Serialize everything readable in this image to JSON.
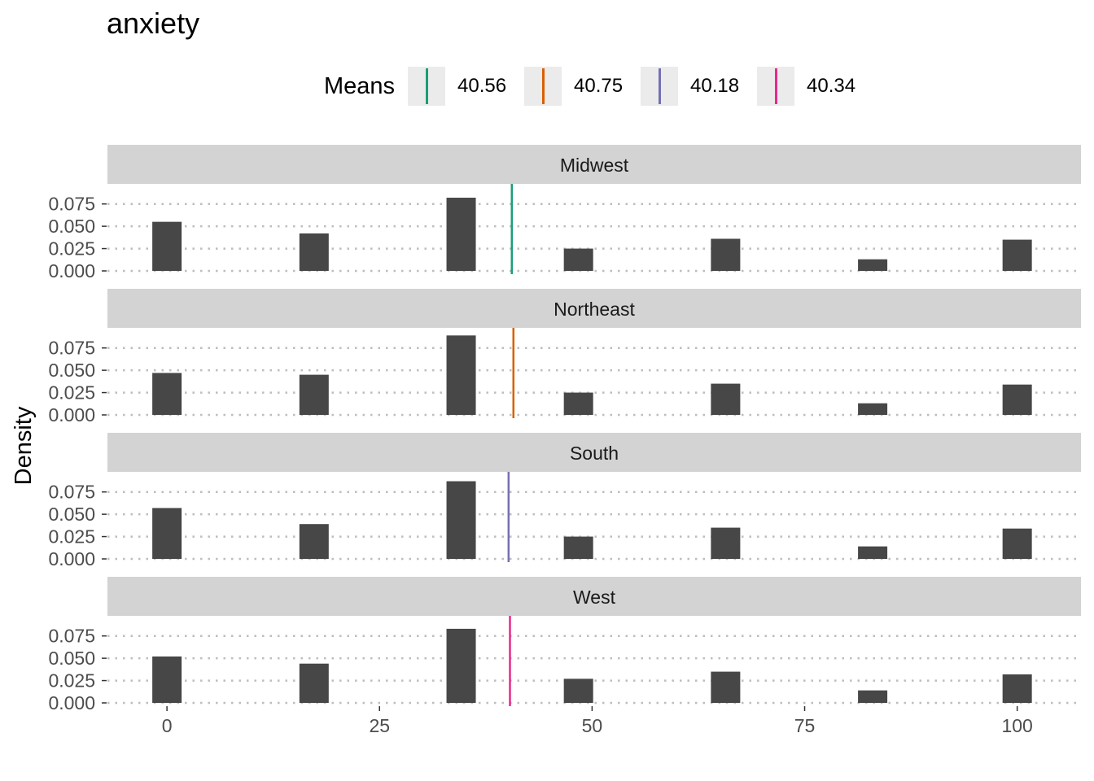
{
  "title": "anxiety",
  "legend": {
    "title": "Means",
    "items": [
      {
        "label": "40.56",
        "color": "#1b9e77"
      },
      {
        "label": "40.75",
        "color": "#d95f02"
      },
      {
        "label": "40.18",
        "color": "#7570b3"
      },
      {
        "label": "40.34",
        "color": "#e7298a"
      }
    ]
  },
  "chart_data": {
    "type": "bar",
    "title": "anxiety",
    "xlabel": "",
    "ylabel": "Density",
    "xlim": [
      -7,
      107.5
    ],
    "ylim": [
      0,
      0.0975
    ],
    "x_ticks": [
      0,
      25,
      50,
      75,
      100
    ],
    "y_ticks": [
      0.0,
      0.025,
      0.05,
      0.075
    ],
    "y_tick_labels": [
      "0.000",
      "0.025",
      "0.050",
      "0.075"
    ],
    "grid": "dotted horizontal",
    "legend_position": "top",
    "bar_x": [
      0,
      17.3,
      34.6,
      48.4,
      65.7,
      83,
      100
    ],
    "panels": [
      {
        "name": "Midwest",
        "mean": 40.56,
        "color": "#1b9e77",
        "values": [
          0.055,
          0.042,
          0.082,
          0.025,
          0.036,
          0.013,
          0.035
        ]
      },
      {
        "name": "Northeast",
        "mean": 40.75,
        "color": "#d95f02",
        "values": [
          0.047,
          0.045,
          0.089,
          0.025,
          0.035,
          0.013,
          0.034
        ]
      },
      {
        "name": "South",
        "mean": 40.18,
        "color": "#7570b3",
        "values": [
          0.057,
          0.039,
          0.087,
          0.025,
          0.035,
          0.014,
          0.034
        ]
      },
      {
        "name": "West",
        "mean": 40.34,
        "color": "#e7298a",
        "values": [
          0.052,
          0.044,
          0.083,
          0.027,
          0.035,
          0.014,
          0.032
        ]
      }
    ]
  }
}
